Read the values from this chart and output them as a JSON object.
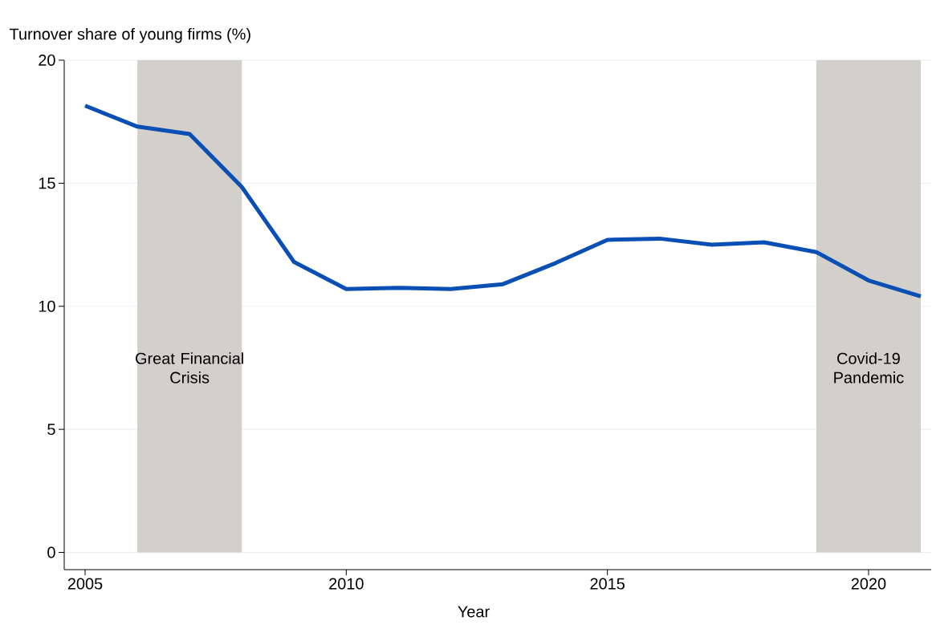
{
  "chart_data": {
    "type": "line",
    "ylabel": "Turnover share of young firms (%)",
    "xlabel": "Year",
    "x": [
      2005,
      2006,
      2007,
      2008,
      2009,
      2010,
      2011,
      2012,
      2013,
      2014,
      2015,
      2016,
      2017,
      2018,
      2019,
      2020,
      2021
    ],
    "series": [
      {
        "color": "#0a4fb4",
        "values": [
          18.15,
          17.3,
          17.0,
          14.85,
          11.8,
          10.7,
          10.75,
          10.7,
          10.9,
          11.75,
          12.7,
          12.75,
          12.5,
          12.6,
          12.2,
          11.05,
          10.4
        ]
      }
    ],
    "xlim": [
      2004.6,
      2021.2
    ],
    "ylim": [
      -0.7,
      20
    ],
    "xticks": [
      2005,
      2010,
      2015,
      2020
    ],
    "yticks": [
      0,
      5,
      10,
      15,
      20
    ],
    "grid": "y",
    "legend": false,
    "marker": "none",
    "line_style": "solid",
    "bands": [
      {
        "axis": "x",
        "from": 2006,
        "to": 2008,
        "label": "Great Financial Crisis",
        "color": "#d3d0cb"
      },
      {
        "axis": "x",
        "from": 2019,
        "to": 2021,
        "label": "Covid-19 Pandemic",
        "color": "#d3d0cb"
      }
    ]
  }
}
